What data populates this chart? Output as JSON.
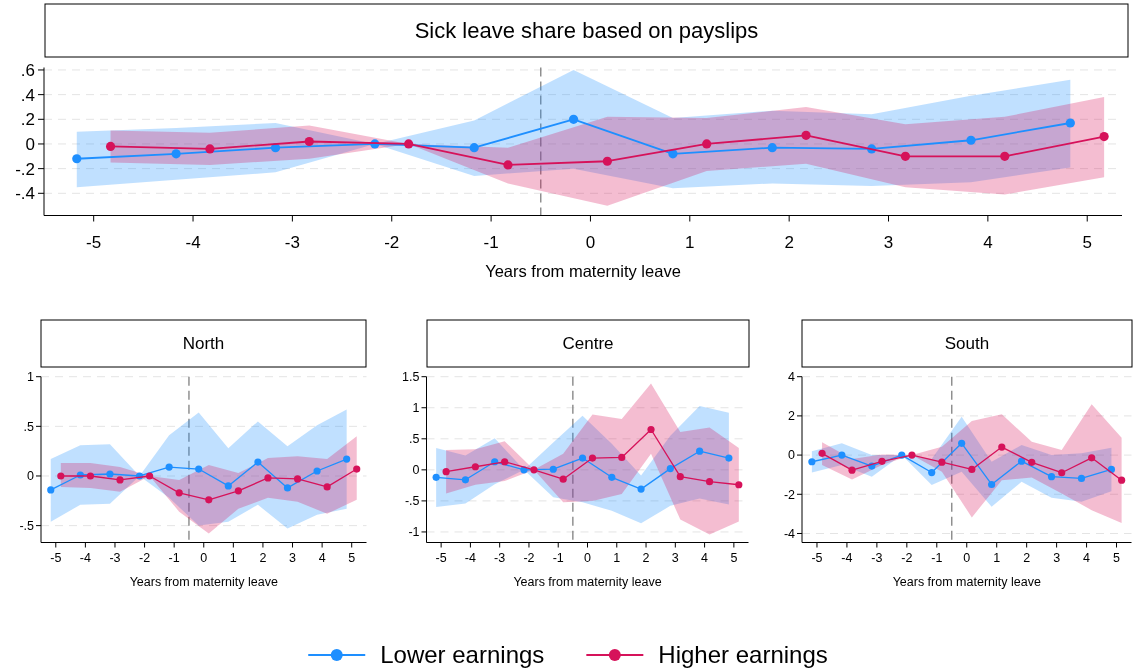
{
  "chart_data": [
    {
      "type": "line",
      "title": "Sick leave share based on payslips",
      "xlabel": "Years from maternity leave",
      "xlim": [
        -5.5,
        5.35
      ],
      "ylim": [
        -0.58,
        0.62
      ],
      "xticks": [
        -5,
        -4,
        -3,
        -2,
        -1,
        0,
        1,
        2,
        3,
        4,
        5
      ],
      "yticks": [
        {
          "value": -0.4,
          "label": "-.4"
        },
        {
          "value": -0.2,
          "label": "-.2"
        },
        0,
        {
          "value": 0.2,
          "label": ".2"
        },
        {
          "value": 0.4,
          "label": ".4"
        },
        {
          "value": 0.6,
          "label": ".6"
        }
      ],
      "grid": "y",
      "legend": "bottom",
      "marker": "circle",
      "line_style": "solid",
      "ref_lines": [
        {
          "axis": "x",
          "value": -0.5,
          "color": "#808080",
          "line_style": "dashed"
        }
      ],
      "series": [
        {
          "name": "Lower earnings",
          "color": "#1e8fff",
          "x": [
            -5.17,
            -4.17,
            -3.17,
            -2.17,
            -1.17,
            -0.17,
            0.83,
            1.83,
            2.83,
            3.83,
            4.83
          ],
          "values": [
            -0.12,
            -0.08,
            -0.03,
            0,
            -0.03,
            0.2,
            -0.08,
            -0.03,
            -0.04,
            0.03,
            0.17
          ],
          "lower": [
            -0.35,
            -0.29,
            -0.23,
            0,
            -0.26,
            -0.2,
            -0.36,
            -0.32,
            -0.34,
            -0.31,
            -0.19
          ],
          "upper": [
            0.1,
            0.13,
            0.17,
            0,
            0.19,
            0.6,
            0.21,
            0.27,
            0.24,
            0.39,
            0.52
          ]
        },
        {
          "name": "Higher earnings",
          "color": "#d6125a",
          "x": [
            -4.83,
            -3.83,
            -2.83,
            -1.83,
            -0.83,
            0.17,
            1.17,
            2.17,
            3.17,
            4.17,
            5.17
          ],
          "values": [
            -0.02,
            -0.04,
            0.02,
            0,
            -0.17,
            -0.14,
            0,
            0.07,
            -0.1,
            -0.1,
            0.06
          ],
          "lower": [
            -0.15,
            -0.17,
            -0.12,
            0,
            -0.32,
            -0.5,
            -0.22,
            -0.16,
            -0.35,
            -0.41,
            -0.27
          ],
          "upper": [
            0.11,
            0.09,
            0.15,
            0,
            -0.03,
            0.22,
            0.21,
            0.3,
            0.16,
            0.22,
            0.38
          ]
        }
      ]
    },
    {
      "type": "line",
      "title": "North",
      "xlabel": "Years from maternity leave",
      "xlim": [
        -5.5,
        5.5
      ],
      "ylim": [
        -0.67,
        1
      ],
      "xticks": [
        -5,
        -4,
        -3,
        -2,
        -1,
        0,
        1,
        2,
        3,
        4,
        5
      ],
      "yticks": [
        {
          "value": -0.5,
          "label": "-.5"
        },
        0,
        {
          "value": 0.5,
          "label": ".5"
        },
        1
      ],
      "grid": "y",
      "marker": "circle",
      "line_style": "solid",
      "ref_lines": [
        {
          "axis": "x",
          "value": -0.5,
          "color": "#808080",
          "line_style": "dashed"
        }
      ],
      "series": [
        {
          "color": "#1e8fff",
          "x": [
            -5.17,
            -4.17,
            -3.17,
            -2.17,
            -1.17,
            -0.17,
            0.83,
            1.83,
            2.83,
            3.83,
            4.83
          ],
          "values": [
            -0.14,
            0.01,
            0.02,
            0,
            0.09,
            0.07,
            -0.1,
            0.14,
            -0.12,
            0.05,
            0.17
          ],
          "lower": [
            -0.46,
            -0.29,
            -0.28,
            0,
            -0.22,
            -0.5,
            -0.46,
            -0.29,
            -0.53,
            -0.39,
            -0.33
          ],
          "upper": [
            0.17,
            0.31,
            0.32,
            0,
            0.41,
            0.64,
            0.28,
            0.55,
            0.3,
            0.51,
            0.67
          ]
        },
        {
          "color": "#d6125a",
          "x": [
            -4.83,
            -3.83,
            -2.83,
            -1.83,
            -0.83,
            0.17,
            1.17,
            2.17,
            3.17,
            4.17,
            5.17
          ],
          "values": [
            0,
            0,
            -0.04,
            0,
            -0.17,
            -0.24,
            -0.15,
            -0.02,
            -0.03,
            -0.11,
            0.07
          ],
          "lower": [
            -0.11,
            -0.12,
            -0.16,
            0,
            -0.36,
            -0.58,
            -0.33,
            -0.22,
            -0.26,
            -0.38,
            -0.24
          ],
          "upper": [
            0.13,
            0.13,
            0.09,
            0,
            -0.04,
            0.11,
            0.03,
            0.18,
            0.2,
            0.17,
            0.4
          ]
        }
      ]
    },
    {
      "type": "line",
      "title": "Centre",
      "xlabel": "Years from maternity leave",
      "xlim": [
        -5.5,
        5.5
      ],
      "ylim": [
        -1.17,
        1.5
      ],
      "xticks": [
        -5,
        -4,
        -3,
        -2,
        -1,
        0,
        1,
        2,
        3,
        4,
        5
      ],
      "yticks": [
        -1,
        {
          "value": -0.5,
          "label": "-.5"
        },
        0,
        {
          "value": 0.5,
          "label": ".5"
        },
        1,
        1.5
      ],
      "grid": "y",
      "marker": "circle",
      "line_style": "solid",
      "ref_lines": [
        {
          "axis": "x",
          "value": -0.5,
          "color": "#808080",
          "line_style": "dashed"
        }
      ],
      "series": [
        {
          "color": "#1e8fff",
          "x": [
            -5.17,
            -4.17,
            -3.17,
            -2.17,
            -1.17,
            -0.17,
            0.83,
            1.83,
            2.83,
            3.83,
            4.83
          ],
          "values": [
            -0.12,
            -0.16,
            0.13,
            0,
            0.01,
            0.19,
            -0.12,
            -0.31,
            0.02,
            0.3,
            0.19
          ],
          "lower": [
            -0.6,
            -0.54,
            -0.23,
            0,
            -0.44,
            -0.52,
            -0.66,
            -0.86,
            -0.58,
            -0.46,
            -0.56
          ],
          "upper": [
            0.35,
            0.23,
            0.51,
            0,
            0.44,
            0.87,
            0.42,
            -0.09,
            0.55,
            1.03,
            0.92
          ]
        },
        {
          "color": "#d6125a",
          "x": [
            -4.83,
            -3.83,
            -2.83,
            -1.83,
            -0.83,
            0.17,
            1.17,
            2.17,
            3.17,
            4.17,
            5.17
          ],
          "values": [
            -0.03,
            0.05,
            0.13,
            0,
            -0.15,
            0.19,
            0.2,
            0.65,
            -0.11,
            -0.19,
            -0.24
          ],
          "lower": [
            -0.38,
            -0.24,
            -0.18,
            0,
            -0.52,
            -0.5,
            -0.39,
            0.26,
            -0.8,
            -1.04,
            -0.83
          ],
          "upper": [
            0.32,
            0.33,
            0.46,
            0,
            0.26,
            0.89,
            0.82,
            1.39,
            0.61,
            0.68,
            0.35
          ]
        }
      ]
    },
    {
      "type": "line",
      "title": "South",
      "xlabel": "Years from maternity leave",
      "xlim": [
        -5.5,
        5.5
      ],
      "ylim": [
        -4.46,
        4
      ],
      "xticks": [
        -5,
        -4,
        -3,
        -2,
        -1,
        0,
        1,
        2,
        3,
        4,
        5
      ],
      "yticks": [
        -4,
        -2,
        0,
        2,
        4
      ],
      "grid": "y",
      "marker": "circle",
      "line_style": "solid",
      "ref_lines": [
        {
          "axis": "x",
          "value": -0.5,
          "color": "#808080",
          "line_style": "dashed"
        }
      ],
      "series": [
        {
          "color": "#1e8fff",
          "x": [
            -5.17,
            -4.17,
            -3.17,
            -2.17,
            -1.17,
            -0.17,
            0.83,
            1.83,
            2.83,
            3.83,
            4.83
          ],
          "values": [
            -0.34,
            0,
            -0.56,
            0,
            -0.89,
            0.6,
            -1.5,
            -0.31,
            -1.1,
            -1.19,
            -0.73
          ],
          "lower": [
            -0.89,
            -0.51,
            -1.1,
            0,
            -1.53,
            -0.85,
            -2.64,
            -1.36,
            -2.18,
            -2.38,
            -1.84
          ],
          "upper": [
            0.2,
            0.6,
            0,
            0,
            -0.2,
            1.96,
            -0.34,
            0.51,
            0,
            0.1,
            0.37
          ]
        },
        {
          "color": "#d6125a",
          "x": [
            -4.83,
            -3.83,
            -2.83,
            -1.83,
            -0.83,
            0.17,
            1.17,
            2.17,
            3.17,
            4.17,
            5.17
          ],
          "values": [
            0.09,
            -0.77,
            -0.32,
            0,
            -0.36,
            -0.73,
            0.41,
            -0.37,
            -0.9,
            -0.14,
            -1.28
          ],
          "lower": [
            -0.51,
            -1.24,
            -0.51,
            0,
            -0.85,
            -3.18,
            -1.28,
            -1.14,
            -1.96,
            -2.81,
            -3.46
          ],
          "upper": [
            0.65,
            -0.2,
            0.03,
            0,
            0.43,
            1.74,
            2.08,
            0.68,
            0.26,
            2.59,
            0.89
          ]
        }
      ]
    }
  ]
}
